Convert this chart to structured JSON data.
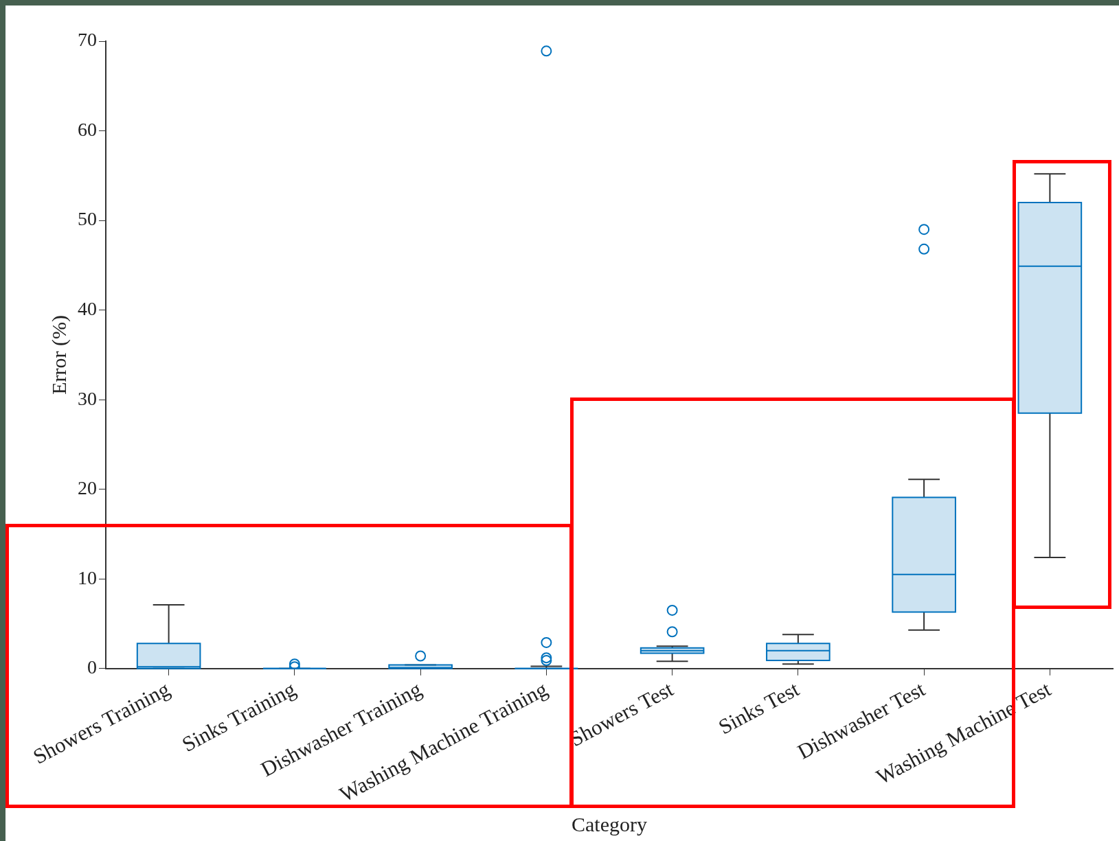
{
  "chart_data": {
    "type": "box",
    "xlabel": "Category",
    "ylabel": "Error (%)",
    "categories": [
      "Showers Training",
      "Sinks Training",
      "Dishwasher Training",
      "Washing Machine Training",
      "Showers Test",
      "Sinks Test",
      "Dishwasher Test",
      "Washing Machine Test"
    ],
    "boxes": [
      {
        "low": 0,
        "q1": 0,
        "median": 0.2,
        "q3": 2.8,
        "high": 7.1
      },
      {
        "low": 0,
        "q1": 0,
        "median": 0,
        "q3": 0,
        "high": 0,
        "outliers": [
          0.2,
          0.5
        ]
      },
      {
        "low": 0,
        "q1": 0,
        "median": 0.1,
        "q3": 0.4,
        "high": 0.4,
        "outliers": [
          1.4
        ]
      },
      {
        "low": 0,
        "q1": 0,
        "median": 0,
        "q3": 0,
        "high": 0.25,
        "outliers": [
          0.9,
          1.2,
          2.9,
          68.9
        ]
      },
      {
        "low": 0.8,
        "q1": 1.7,
        "median": 2.0,
        "q3": 2.3,
        "high": 2.5,
        "outliers": [
          4.1,
          6.5
        ]
      },
      {
        "low": 0.5,
        "q1": 0.9,
        "median": 2.0,
        "q3": 2.8,
        "high": 3.8
      },
      {
        "low": 4.3,
        "q1": 6.3,
        "median": 10.5,
        "q3": 19.1,
        "high": 21.1,
        "outliers": [
          46.8,
          49.0
        ]
      },
      {
        "low": 12.4,
        "q1": 28.5,
        "median": 44.9,
        "q3": 52.0,
        "high": 55.2
      }
    ],
    "color": "#0072bd",
    "ylim": [
      0,
      70
    ],
    "yticks": [
      0,
      10,
      20,
      30,
      40,
      50,
      60,
      70
    ]
  }
}
